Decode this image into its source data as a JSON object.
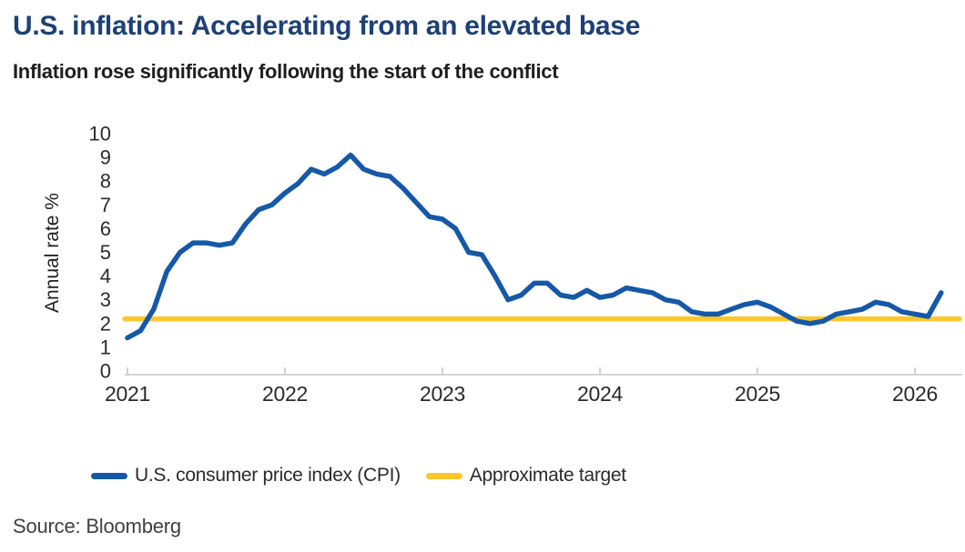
{
  "header": {
    "title": "U.S. inflation: Accelerating from an elevated base",
    "subtitle": "Inflation rose significantly following the start of the conflict"
  },
  "source": {
    "label": "Source: Bloomberg"
  },
  "legend": [
    {
      "label": "U.S. consumer price index (CPI)",
      "color": "#1558a8"
    },
    {
      "label": "Approximate target",
      "color": "#fdc72c"
    }
  ],
  "colors": {
    "title_navy": "#1d4076",
    "subtitle_text": "#1f1f1f",
    "cpi_line_blue": "#1558a8",
    "target_yellow": "#fdc72c",
    "axis_gray": "#c8c8c8",
    "tick_label": "#2b2b2b",
    "axis_title": "#1f1f1f",
    "source_text": "#404040",
    "background": "#ffffff"
  },
  "chart_data": {
    "type": "line",
    "title": "U.S. inflation: Accelerating from an elevated base",
    "subtitle": "Inflation rose significantly following the start of the conflict",
    "xlabel": "",
    "ylabel": "Annual rate %",
    "ylim": [
      0,
      10
    ],
    "y_tick_labels": [
      "0",
      "1",
      "2",
      "3",
      "4",
      "5",
      "6",
      "7",
      "8",
      "9",
      "10"
    ],
    "x_tick_labels": [
      "2021",
      "2022",
      "2023",
      "2024",
      "2025",
      "2026"
    ],
    "grid": false,
    "legend_position": "bottom",
    "x_start": "2021-01",
    "x_interval": "1 month",
    "series": [
      {
        "name": "U.S. consumer price index (CPI)",
        "color": "#1558a8",
        "style": "solid",
        "values": [
          1.4,
          1.7,
          2.6,
          4.2,
          5.0,
          5.4,
          5.4,
          5.3,
          5.4,
          6.2,
          6.8,
          7.0,
          7.5,
          7.9,
          8.5,
          8.3,
          8.6,
          9.1,
          8.5,
          8.3,
          8.2,
          7.7,
          7.1,
          6.5,
          6.4,
          6.0,
          5.0,
          4.9,
          4.0,
          3.0,
          3.2,
          3.7,
          3.7,
          3.2,
          3.1,
          3.4,
          3.1,
          3.2,
          3.5,
          3.4,
          3.3,
          3.0,
          2.9,
          2.5,
          2.4,
          2.4,
          2.6,
          2.8,
          2.9,
          2.7,
          2.4,
          2.1,
          2.0,
          2.1,
          2.4,
          2.5,
          2.6,
          2.9,
          2.8,
          2.5,
          2.4,
          2.3,
          3.3
        ]
      },
      {
        "name": "Approximate target",
        "color": "#fdc72c",
        "style": "horizontal-line",
        "value": 2.2
      }
    ]
  }
}
